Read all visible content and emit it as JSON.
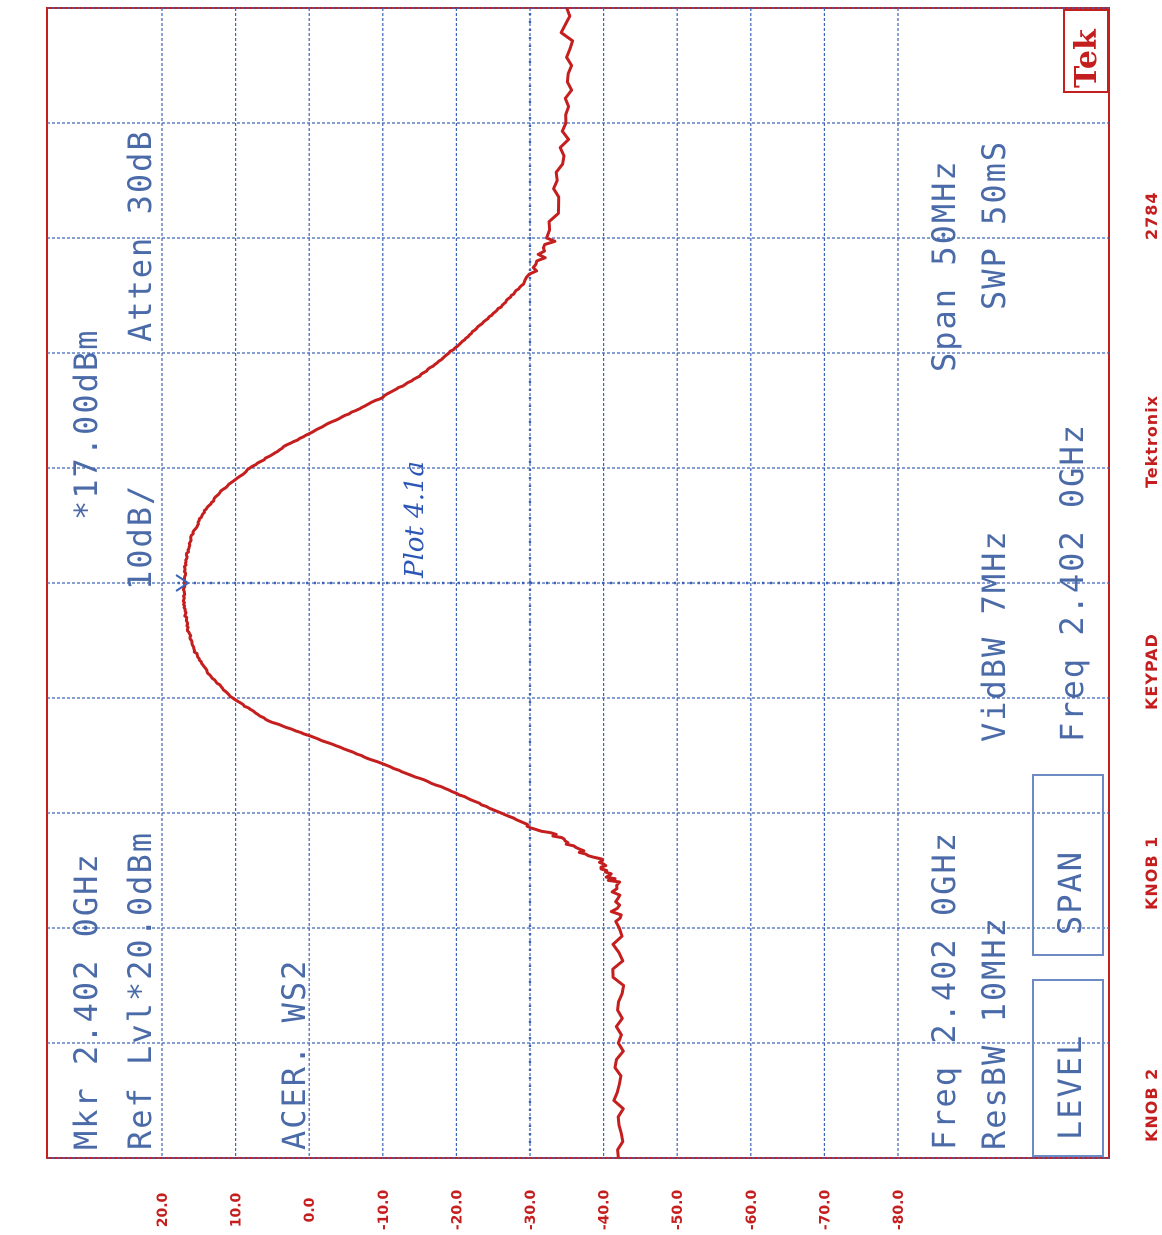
{
  "handwritten_note": "Plot 4.1a",
  "brand": "Tek",
  "header": {
    "marker": "Mkr   2.402 0GHz",
    "marker_level": "*17.00dBm",
    "ref_level": "Ref Lvl*20.0dBm",
    "scale": "10dB/",
    "atten": "Atten  30dB",
    "label": "ACER. WS2"
  },
  "footer_block": {
    "freq_left": "Freq   2.402 0GHz",
    "span": "Span 50MHz",
    "resbw": "ResBW 10MHz",
    "vidbw": "VidBW 7MHz",
    "swp": "SWP 50mS",
    "freq_right": "Freq   2.402 0GHz",
    "btn_level": "LEVEL",
    "btn_span": "SPAN"
  },
  "footer_bar": {
    "knob2": "KNOB 2",
    "knob1": "KNOB 1",
    "keypad": "KEYPAD",
    "maker": "Tektronix",
    "serial": "2784"
  },
  "chart_data": {
    "type": "line",
    "title": "",
    "xlabel": "",
    "ylabel": "",
    "units": "dBm",
    "center_freq": "2.402 0GHz",
    "span": "50MHz",
    "ylim": [
      -80,
      20
    ],
    "yticks": [
      "20.0",
      "10.0",
      "0.0",
      "-10.0",
      "-20.0",
      "-30.0",
      "-40.0",
      "-50.0",
      "-60.0",
      "-70.0",
      "-80.0"
    ],
    "x_unit": "MHz offset from center",
    "x": [
      -25,
      -20,
      -15,
      -13,
      -12,
      -11,
      -10,
      -9,
      -8,
      -7,
      -6,
      -5,
      -4,
      -3,
      -2,
      -1,
      0,
      1,
      2,
      3,
      4,
      5,
      6,
      7,
      8,
      9,
      10,
      11,
      12,
      13,
      15,
      20,
      25
    ],
    "series": [
      {
        "values": [
          -42.0,
          -42.0,
          -42.0,
          -41.5,
          -39.0,
          -33.5,
          -26.0,
          -19.0,
          -11.0,
          -3.0,
          5.5,
          10.5,
          13.5,
          15.5,
          16.5,
          17.0,
          17.0,
          16.8,
          16.0,
          14.5,
          12.0,
          8.0,
          3.0,
          -3.0,
          -9.5,
          -15.0,
          -19.0,
          -22.5,
          -26.0,
          -29.0,
          -33.0,
          -35.0,
          -35.0
        ]
      }
    ],
    "marker": {
      "x": 0,
      "y": 17.0
    },
    "marker_vline_x": 0,
    "threshold_line_y": -30,
    "grid": true
  }
}
